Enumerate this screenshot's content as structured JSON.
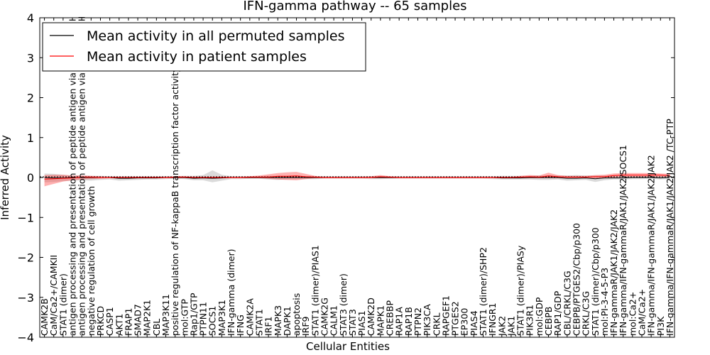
{
  "chart_data": {
    "type": "line",
    "title": "IFN-gamma pathway -- 65 samples",
    "xlabel": "Cellular Entities",
    "ylabel": "Inferred Activity",
    "ylim": [
      -4,
      4
    ],
    "yticks": [
      -4,
      -3,
      -2,
      -1,
      0,
      1,
      2,
      3,
      4
    ],
    "ytick_labels": [
      "−4",
      "−3",
      "−2",
      "−1",
      "0",
      "1",
      "2",
      "3",
      "4"
    ],
    "legend": {
      "placement": "top-left",
      "entries": [
        {
          "label": "Mean activity in all permuted samples",
          "color": "#000000"
        },
        {
          "label": "Mean activity in patient samples",
          "color": "#ff0000"
        }
      ]
    },
    "categories": [
      "CAMK2B",
      "CaM/Ca2+/CAMKII",
      "STAT1 (dimer)",
      "antigen processing and presentation of peptide antigen via MHC class I",
      "antigen processing and presentation of peptide antigen via MHC class II",
      "negative regulation of cell growth",
      "PRKCD",
      "CASP1",
      "AKT1",
      "FRAP1",
      "SMAD7",
      "MAP2K1",
      "CBL",
      "MAP3K11",
      "positive regulation of NF-kappaB transcription factor activity",
      "mol:GTP",
      "Rap1/GTP",
      "PTPN11",
      "SOCS1",
      "MAP3K1",
      "IFN-gamma (dimer)",
      "IFNG",
      "CAMK2A",
      "STAT1",
      "IRF1",
      "MAPK3",
      "DAPK1",
      "apoptosis",
      "IRF9",
      "STAT1 (dimer)/PIAS1",
      "CAMK2G",
      "CALM1",
      "STAT3 (dimer)",
      "STAT3",
      "PIAS1",
      "CAMK2D",
      "MAPK1",
      "CREBBP",
      "RAP1A",
      "RAP1B",
      "PTPN2",
      "PIK3CA",
      "CRKL",
      "RAPGEF1",
      "PTGES2",
      "EP300",
      "PIAS4",
      "STAT1 (dimer)/SHP2",
      "IFNGR1",
      "JAK2",
      "JAK1",
      "STAT1 (dimer)/PIASy",
      "PIK3R1",
      "mol:GDP",
      "CEBPB",
      "RAP1/GDP",
      "CBL/CRKL/C3G",
      "CEBPB/PTGES2/Cbp/p300",
      "CRKL/C3G",
      "STAT1 (dimer)/Cbp/p300",
      "mol:PI-3-4-5-P3",
      "IFN-gammaR/JAK1/JAK2/JAK2",
      "IFN-gamma/IFN-gammaR/JAK1/JAK2/SOCS1",
      "mol:Ca2+",
      "CaM/Ca2+",
      "IFN-gamma/IFN-gammaR/JAK1/JAK2/JAK2",
      "PI3K",
      "IFN-gamma/IFN-gammaR/JAK1/JAK2/JAK2 /TC-PTP"
    ],
    "series": [
      {
        "name": "Mean activity in all permuted samples",
        "color": "#000000",
        "values": [
          0,
          -0.01,
          -0.01,
          0,
          0,
          0,
          0,
          0,
          -0.02,
          -0.02,
          -0.01,
          -0.01,
          -0.01,
          0,
          0,
          0,
          -0.02,
          -0.01,
          -0.02,
          -0.01,
          0,
          0,
          0,
          0,
          0,
          0,
          0,
          0,
          0,
          0,
          0,
          0,
          0,
          0,
          0,
          0,
          0,
          0,
          0,
          0,
          0,
          0,
          0,
          0,
          0,
          0,
          0,
          0,
          0,
          -0.01,
          -0.01,
          -0.01,
          0,
          0,
          0,
          0,
          -0.02,
          -0.02,
          -0.01,
          -0.03,
          -0.01,
          -0.01,
          -0.01,
          0,
          0,
          0,
          -0.01,
          0
        ],
        "band_lower": [
          -0.12,
          -0.11,
          -0.09,
          -0.08,
          -0.07,
          -0.08,
          -0.06,
          -0.05,
          -0.08,
          -0.07,
          -0.06,
          -0.05,
          -0.05,
          -0.04,
          -0.03,
          -0.04,
          -0.07,
          -0.07,
          -0.12,
          -0.08,
          -0.04,
          -0.04,
          -0.03,
          -0.03,
          -0.05,
          -0.06,
          -0.05,
          -0.04,
          -0.04,
          -0.04,
          -0.03,
          -0.03,
          -0.03,
          -0.03,
          -0.03,
          -0.04,
          -0.04,
          -0.03,
          -0.03,
          -0.03,
          -0.03,
          -0.03,
          -0.03,
          -0.03,
          -0.03,
          -0.03,
          -0.03,
          -0.03,
          -0.04,
          -0.05,
          -0.05,
          -0.05,
          -0.05,
          -0.06,
          -0.06,
          -0.05,
          -0.08,
          -0.07,
          -0.06,
          -0.11,
          -0.07,
          -0.05,
          -0.05,
          -0.04,
          -0.04,
          -0.03,
          -0.05,
          -0.04
        ],
        "band_upper": [
          0.1,
          0.09,
          0.07,
          0.05,
          0.05,
          0.04,
          0.04,
          0.03,
          0.03,
          0.03,
          0.03,
          0.03,
          0.03,
          0.03,
          0.03,
          0.04,
          0.04,
          0.06,
          0.18,
          0.07,
          0.03,
          0.03,
          0.03,
          0.03,
          0.04,
          0.04,
          0.04,
          0.04,
          0.03,
          0.03,
          0.03,
          0.03,
          0.03,
          0.03,
          0.03,
          0.03,
          0.03,
          0.03,
          0.03,
          0.03,
          0.03,
          0.03,
          0.03,
          0.03,
          0.03,
          0.03,
          0.03,
          0.03,
          0.03,
          0.04,
          0.04,
          0.04,
          0.04,
          0.05,
          0.05,
          0.05,
          0.05,
          0.06,
          0.05,
          0.05,
          0.05,
          0.04,
          0.04,
          0.03,
          0.03,
          0.03,
          0.04,
          0.04
        ]
      },
      {
        "name": "Mean activity in patient samples",
        "color": "#ff0000",
        "values": [
          -0.04,
          -0.03,
          -0.02,
          -0.01,
          0.01,
          0.01,
          0,
          0,
          0,
          0,
          0,
          0,
          0,
          0,
          0.01,
          0.01,
          0,
          0,
          0,
          0,
          0,
          0,
          0.01,
          0.01,
          0.01,
          0.03,
          0.03,
          0.04,
          0.02,
          0.01,
          0,
          0,
          0,
          0,
          0,
          0,
          0.02,
          0.01,
          0,
          0,
          0,
          0,
          0,
          0,
          0,
          0,
          0,
          0,
          0,
          0,
          0,
          0.01,
          0.02,
          0.01,
          0.04,
          0.02,
          0.01,
          0.01,
          0.01,
          0.02,
          0.02,
          0.05,
          0.06,
          0.06,
          0.06,
          0.06,
          0.06,
          0.05
        ],
        "band_lower": [
          -0.22,
          -0.16,
          -0.1,
          -0.07,
          -0.05,
          -0.04,
          -0.03,
          -0.02,
          -0.02,
          -0.02,
          -0.02,
          -0.02,
          -0.02,
          -0.02,
          -0.02,
          -0.02,
          -0.02,
          -0.02,
          -0.02,
          -0.02,
          -0.02,
          -0.02,
          -0.02,
          -0.02,
          -0.03,
          -0.05,
          -0.06,
          -0.07,
          -0.04,
          -0.02,
          -0.02,
          -0.02,
          -0.02,
          -0.02,
          -0.02,
          -0.02,
          -0.02,
          -0.02,
          -0.02,
          -0.02,
          -0.02,
          -0.02,
          -0.02,
          -0.02,
          -0.02,
          -0.02,
          -0.02,
          -0.02,
          -0.02,
          -0.02,
          -0.02,
          -0.02,
          -0.02,
          -0.02,
          -0.02,
          -0.02,
          -0.02,
          -0.02,
          -0.02,
          -0.02,
          -0.02,
          0,
          0.01,
          0.01,
          0.01,
          0.01,
          0.01,
          0.01
        ],
        "band_upper": [
          0.06,
          0.07,
          0.07,
          0.05,
          0.05,
          0.04,
          0.03,
          0.02,
          0.02,
          0.02,
          0.02,
          0.02,
          0.02,
          0.02,
          0.03,
          0.03,
          0.02,
          0.02,
          0.02,
          0.02,
          0.02,
          0.02,
          0.03,
          0.05,
          0.08,
          0.11,
          0.13,
          0.14,
          0.09,
          0.04,
          0.02,
          0.02,
          0.02,
          0.02,
          0.02,
          0.03,
          0.06,
          0.03,
          0.02,
          0.02,
          0.02,
          0.02,
          0.02,
          0.02,
          0.02,
          0.02,
          0.02,
          0.02,
          0.02,
          0.02,
          0.02,
          0.04,
          0.06,
          0.05,
          0.12,
          0.06,
          0.04,
          0.04,
          0.04,
          0.06,
          0.07,
          0.1,
          0.11,
          0.11,
          0.11,
          0.11,
          0.1,
          0.09
        ]
      }
    ]
  }
}
